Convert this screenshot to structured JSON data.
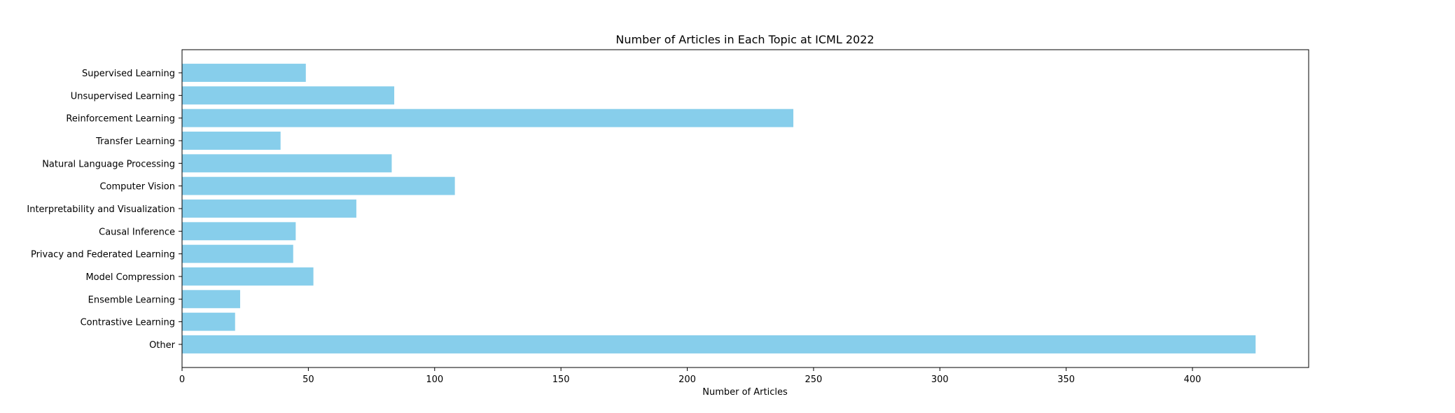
{
  "chart_data": {
    "type": "bar",
    "orientation": "horizontal",
    "title": "Number of Articles in Each Topic at ICML 2022",
    "xlabel": "Number of Articles",
    "ylabel": "",
    "categories": [
      "Supervised Learning",
      "Unsupervised Learning",
      "Reinforcement Learning",
      "Transfer Learning",
      "Natural Language Processing",
      "Computer Vision",
      "Interpretability and Visualization",
      "Causal Inference",
      "Privacy and Federated Learning",
      "Model Compression",
      "Ensemble Learning",
      "Contrastive Learning",
      "Other"
    ],
    "values": [
      49,
      84,
      242,
      39,
      83,
      108,
      69,
      45,
      44,
      52,
      23,
      21,
      425
    ],
    "xlim": [
      0,
      446
    ],
    "xticks": [
      0,
      50,
      100,
      150,
      200,
      250,
      300,
      350,
      400
    ],
    "grid": false,
    "bar_color": "#87ceeb"
  }
}
